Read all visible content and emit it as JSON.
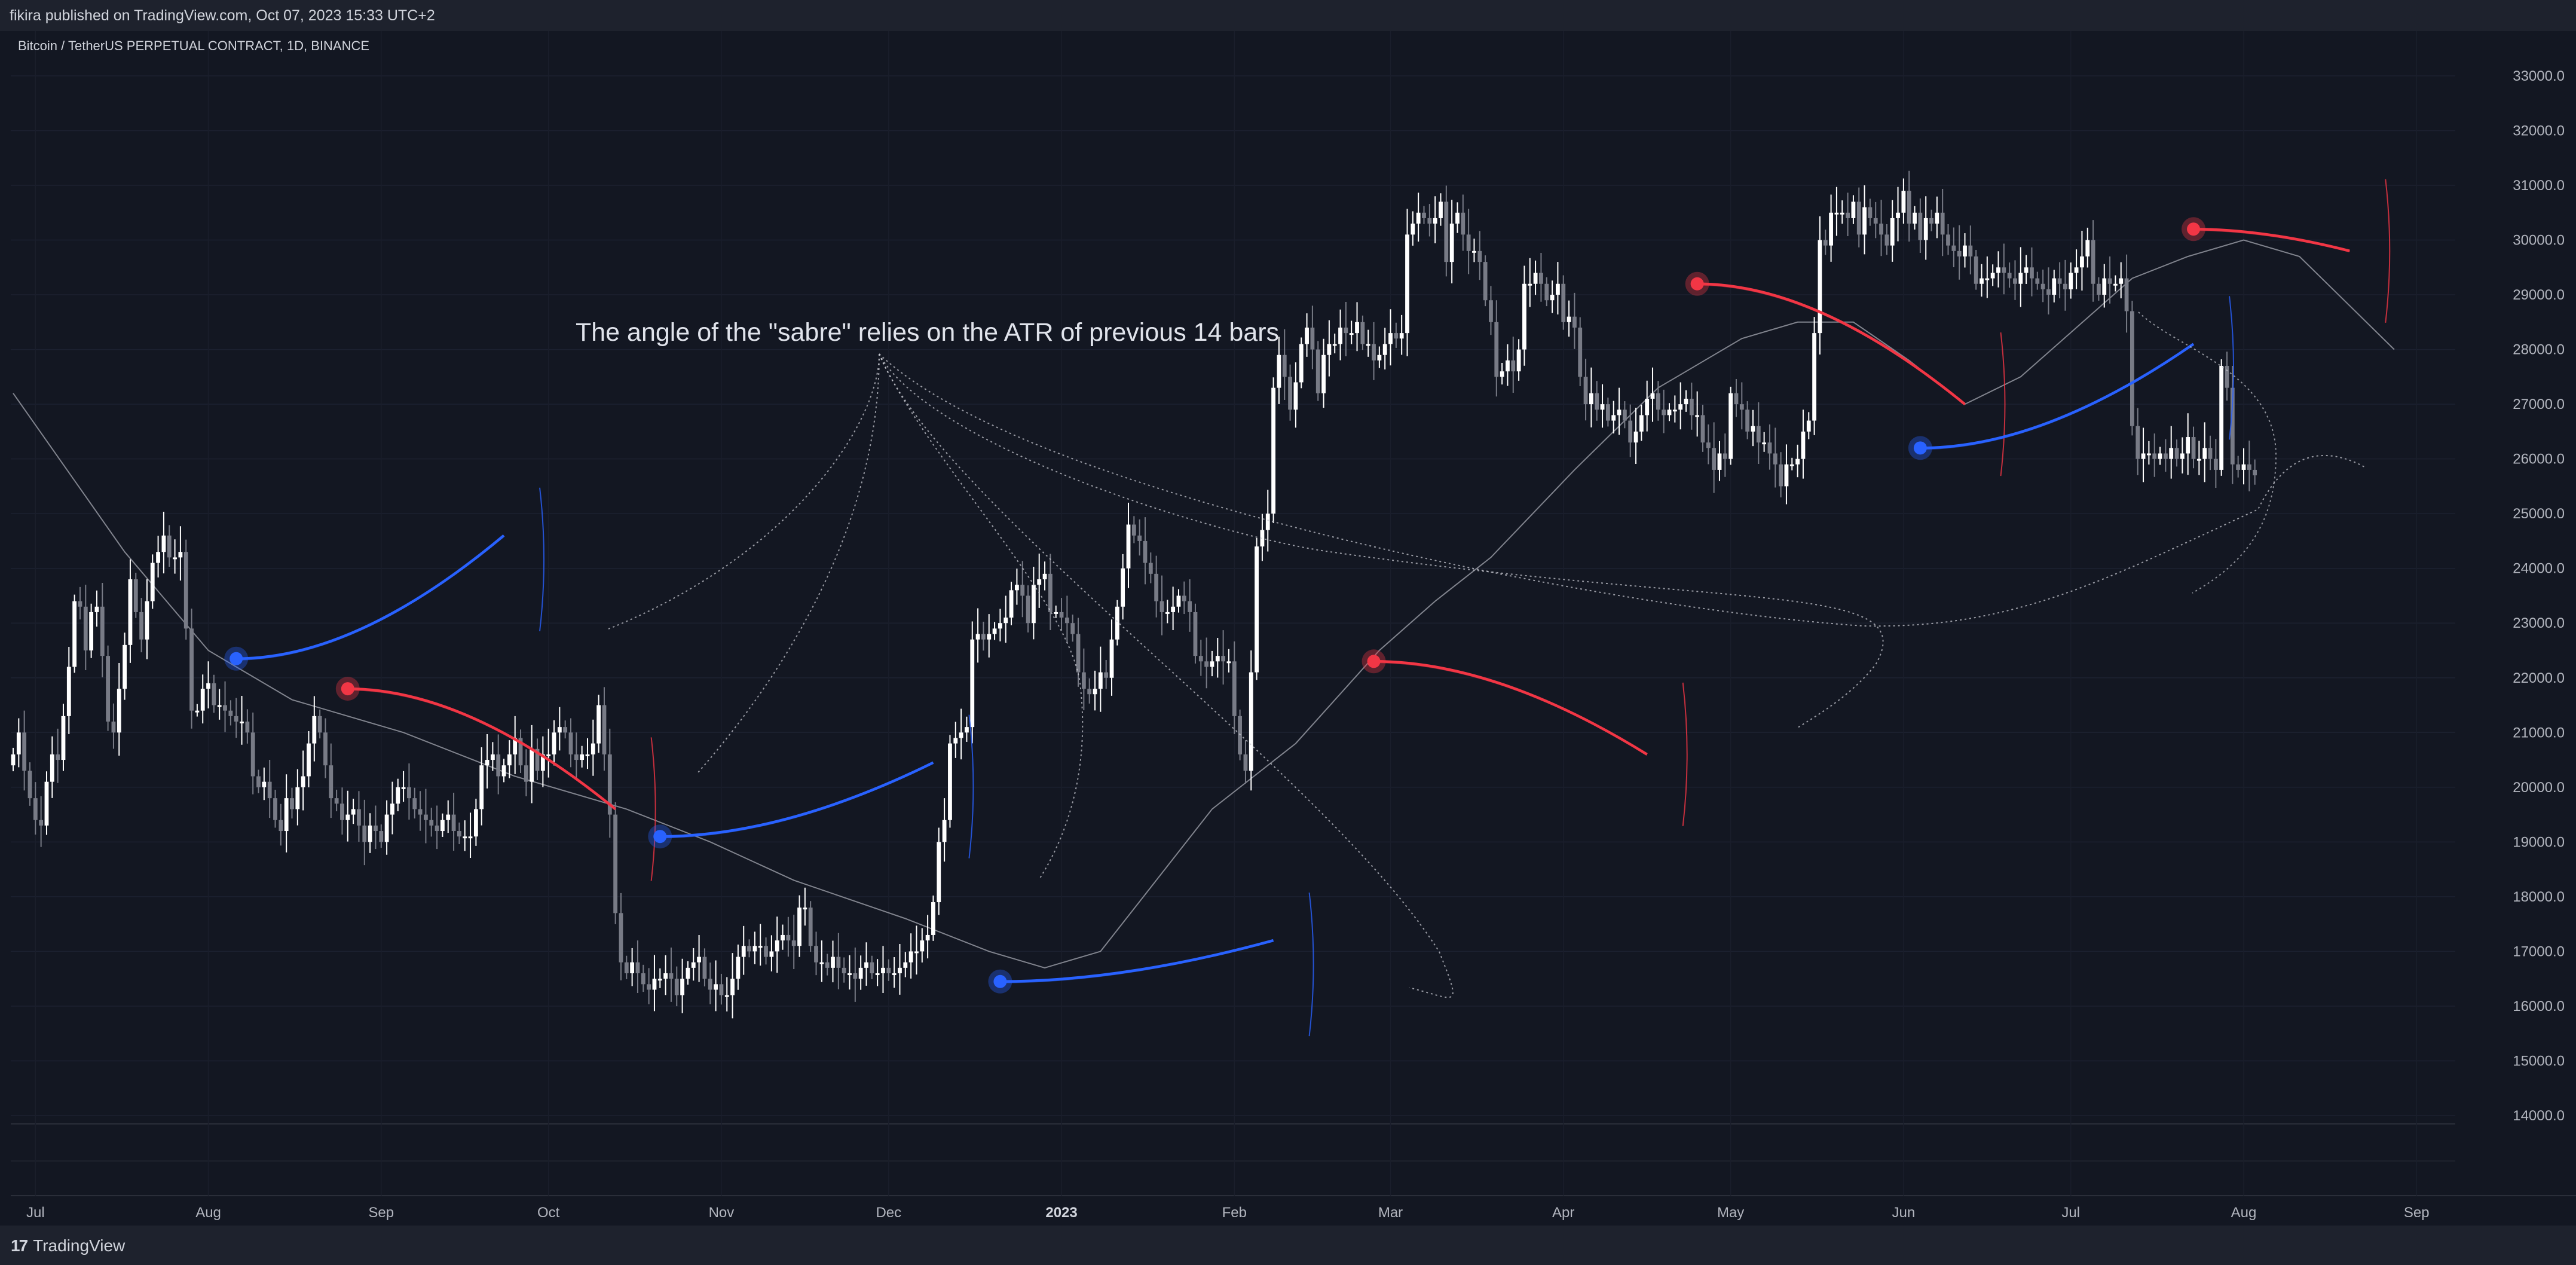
{
  "header": {
    "published": "fikira published on TradingView.com, Oct 07, 2023 15:33 UTC+2"
  },
  "footer": {
    "brand": "TradingView",
    "brand_icon": "tradingview-logo-icon"
  },
  "colors": {
    "background": "#131722",
    "bull": "#ffffff",
    "bear": "#787b86",
    "sabre_bull": "#2962ff",
    "sabre_bear": "#f23645",
    "trail": "#b2b5be"
  },
  "chart_data": {
    "type": "candlestick",
    "title": "Bitcoin / TetherUS PERPETUAL CONTRACT, 1D, BINANCE",
    "annotation": "The angle of the \"sabre\" relies on the ATR of previous 14 bars",
    "ylim": [
      14000,
      33000
    ],
    "y_ticks": [
      "33000.0",
      "32000.0",
      "31000.0",
      "30000.0",
      "29000.0",
      "28000.0",
      "27000.0",
      "26000.0",
      "25000.0",
      "24000.0",
      "23000.0",
      "22000.0",
      "21000.0",
      "20000.0",
      "19000.0",
      "18000.0",
      "17000.0",
      "16000.0",
      "15000.0",
      "14000.0"
    ],
    "x_ticks": [
      {
        "label": "Jul",
        "day": 4
      },
      {
        "label": "Aug",
        "day": 35
      },
      {
        "label": "Sep",
        "day": 66
      },
      {
        "label": "Oct",
        "day": 96
      },
      {
        "label": "Nov",
        "day": 127
      },
      {
        "label": "Dec",
        "day": 157
      },
      {
        "label": "2023",
        "day": 188,
        "bold": true
      },
      {
        "label": "Feb",
        "day": 219
      },
      {
        "label": "Mar",
        "day": 247
      },
      {
        "label": "Apr",
        "day": 278
      },
      {
        "label": "May",
        "day": 308
      },
      {
        "label": "Jun",
        "day": 339
      },
      {
        "label": "Jul",
        "day": 369
      },
      {
        "label": "Aug",
        "day": 400
      },
      {
        "label": "Sep",
        "day": 431
      }
    ],
    "series_close": [
      20600,
      21000,
      20300,
      19800,
      19400,
      19300,
      20100,
      20600,
      20500,
      21300,
      22200,
      23400,
      23300,
      22500,
      23200,
      23300,
      22400,
      21200,
      21000,
      21800,
      22600,
      23800,
      23200,
      22700,
      23400,
      24100,
      24300,
      24600,
      24200,
      24200,
      24300,
      22900,
      21400,
      21400,
      21800,
      21900,
      21500,
      21500,
      21400,
      21300,
      21200,
      21200,
      21000,
      20200,
      20000,
      20100,
      19800,
      19400,
      19200,
      19800,
      19600,
      20000,
      20200,
      20800,
      21300,
      21000,
      20400,
      19800,
      19700,
      19400,
      19500,
      19600,
      19300,
      19000,
      19300,
      19200,
      19000,
      19500,
      19700,
      20000,
      20000,
      19800,
      19600,
      19500,
      19400,
      19300,
      19200,
      19400,
      19500,
      19200,
      19100,
      19100,
      19100,
      19600,
      20400,
      20500,
      20600,
      20200,
      20400,
      20600,
      20900,
      20400,
      20100,
      20700,
      20300,
      20600,
      20600,
      21000,
      21100,
      21000,
      20600,
      20500,
      20600,
      20600,
      20800,
      21500,
      20600,
      19500,
      17700,
      16800,
      16600,
      16800,
      16600,
      16400,
      16300,
      16500,
      16500,
      16600,
      16500,
      16200,
      16500,
      16700,
      16800,
      16900,
      16500,
      16300,
      16400,
      16200,
      16200,
      16500,
      16900,
      17100,
      17000,
      17100,
      17100,
      16900,
      17000,
      17200,
      17300,
      17200,
      17100,
      17800,
      17800,
      17100,
      16800,
      16800,
      16700,
      16900,
      16700,
      16600,
      16600,
      16500,
      16700,
      16800,
      16600,
      16600,
      16700,
      16600,
      16600,
      16700,
      16800,
      17000,
      17000,
      17200,
      17300,
      17900,
      19000,
      19400,
      20800,
      20900,
      21000,
      21100,
      22700,
      22800,
      22700,
      22800,
      22900,
      23000,
      23100,
      23600,
      23700,
      23500,
      23000,
      23700,
      23800,
      23900,
      23200,
      23200,
      23100,
      23000,
      22800,
      22100,
      21800,
      21700,
      21800,
      22100,
      22000,
      22700,
      23300,
      24000,
      24800,
      24600,
      24500,
      24100,
      23900,
      23400,
      23200,
      23200,
      23300,
      23500,
      23400,
      23200,
      22400,
      22300,
      22200,
      22300,
      22400,
      22300,
      22300,
      21300,
      20600,
      20300,
      22100,
      24400,
      24700,
      25000,
      27300,
      27900,
      27500,
      26900,
      27400,
      28100,
      28400,
      28000,
      27200,
      27900,
      28100,
      28100,
      28400,
      28300,
      28300,
      28500,
      28100,
      28100,
      27800,
      27900,
      28100,
      28300,
      28200,
      28300,
      30100,
      30300,
      30500,
      30400,
      30300,
      30400,
      30700,
      29600,
      30300,
      30500,
      30100,
      29800,
      29800,
      29600,
      28900,
      28500,
      27500,
      27600,
      27800,
      27600,
      28000,
      29200,
      29200,
      29400,
      29200,
      28900,
      29000,
      29200,
      28500,
      28600,
      28400,
      27500,
      27000,
      27200,
      26900,
      27000,
      26700,
      26800,
      26900,
      26700,
      26300,
      26500,
      26800,
      27100,
      27200,
      26900,
      26800,
      26900,
      26900,
      27000,
      27100,
      26800,
      26800,
      26300,
      26200,
      25800,
      26100,
      26000,
      27200,
      27000,
      26900,
      26500,
      26600,
      26300,
      26300,
      26100,
      25900,
      25500,
      25900,
      25900,
      26000,
      26500,
      26700,
      28300,
      30000,
      29900,
      30500,
      30500,
      30500,
      30400,
      30700,
      30100,
      30600,
      30400,
      30300,
      30100,
      29900,
      30400,
      30500,
      30900,
      30300,
      30500,
      30000,
      30400,
      30300,
      30500,
      30100,
      29900,
      29800,
      29700,
      29900,
      29700,
      29200,
      29300,
      29300,
      29400,
      29500,
      29400,
      29300,
      29200,
      29400,
      29500,
      29300,
      29200,
      29100,
      29000,
      29300,
      29200,
      29100,
      29400,
      29500,
      29700,
      30000,
      29200,
      29000,
      29300,
      29200,
      29200,
      29300,
      28700,
      26600,
      26000,
      26100,
      26100,
      26000,
      26100,
      26000,
      26200,
      26000,
      26100,
      26400,
      26000,
      26000,
      26200,
      26000,
      25800,
      27700,
      27300,
      25900,
      25800,
      25900,
      25800,
      25700
    ],
    "ma": [
      [
        0,
        27200
      ],
      [
        20,
        24300
      ],
      [
        35,
        22500
      ],
      [
        50,
        21600
      ],
      [
        70,
        21000
      ],
      [
        90,
        20200
      ],
      [
        110,
        19600
      ],
      [
        125,
        19000
      ],
      [
        140,
        18300
      ],
      [
        160,
        17600
      ],
      [
        175,
        17000
      ],
      [
        185,
        16700
      ],
      [
        195,
        17000
      ],
      [
        205,
        18300
      ],
      [
        215,
        19600
      ],
      [
        230,
        20800
      ],
      [
        245,
        22500
      ],
      [
        255,
        23400
      ],
      [
        265,
        24200
      ],
      [
        280,
        25800
      ],
      [
        295,
        27300
      ],
      [
        310,
        28200
      ],
      [
        320,
        28500
      ],
      [
        330,
        28500
      ],
      [
        340,
        27800
      ],
      [
        350,
        27000
      ],
      [
        360,
        27500
      ],
      [
        370,
        28400
      ],
      [
        380,
        29300
      ],
      [
        390,
        29700
      ],
      [
        400,
        30000
      ],
      [
        410,
        29700
      ],
      [
        420,
        28700
      ],
      [
        427,
        28000
      ]
    ],
    "sabres": [
      {
        "direction": "bull",
        "day": 40,
        "price": 22350,
        "end_day": 88,
        "end_price": 24600
      },
      {
        "direction": "bear",
        "day": 60,
        "price": 21800,
        "end_day": 108,
        "end_price": 19600
      },
      {
        "direction": "bull",
        "day": 116,
        "price": 19100,
        "end_day": 165,
        "end_price": 20450
      },
      {
        "direction": "bull",
        "day": 177,
        "price": 16450,
        "end_day": 226,
        "end_price": 17200
      },
      {
        "direction": "bear",
        "day": 244,
        "price": 22300,
        "end_day": 293,
        "end_price": 20600
      },
      {
        "direction": "bear",
        "day": 302,
        "price": 29200,
        "end_day": 350,
        "end_price": 27000
      },
      {
        "direction": "bull",
        "day": 342,
        "price": 26200,
        "end_day": 391,
        "end_price": 28100
      },
      {
        "direction": "bear",
        "day": 391,
        "price": 30200,
        "end_day": 419,
        "end_price": 29800
      }
    ]
  }
}
